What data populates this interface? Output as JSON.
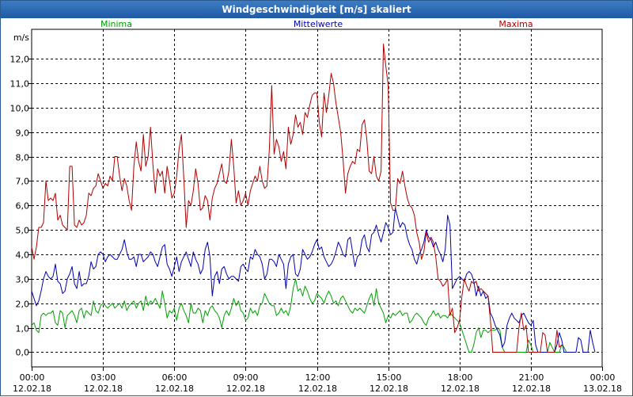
{
  "window": {
    "title": "Windgeschwindigkeit [m/s] skaliert"
  },
  "chart_data": {
    "type": "line",
    "title": "Windgeschwindigkeit [m/s] skaliert",
    "ylabel": "m/s",
    "ylim": [
      -0.6,
      13.2
    ],
    "xlim_hours": [
      0,
      24
    ],
    "grid": true,
    "yticks": [
      "0,0",
      "1,0",
      "2,0",
      "3,0",
      "4,0",
      "5,0",
      "6,0",
      "7,0",
      "8,0",
      "9,0",
      "10,0",
      "11,0",
      "12,0"
    ],
    "xticks": [
      {
        "time": "00:00",
        "date": "12.02.18"
      },
      {
        "time": "03:00",
        "date": "12.02.18"
      },
      {
        "time": "06:00",
        "date": "12.02.18"
      },
      {
        "time": "09:00",
        "date": "12.02.18"
      },
      {
        "time": "12:00",
        "date": "12.02.18"
      },
      {
        "time": "15:00",
        "date": "12.02.18"
      },
      {
        "time": "18:00",
        "date": "12.02.18"
      },
      {
        "time": "21:00",
        "date": "12.02.18"
      },
      {
        "time": "00:00",
        "date": "13.02.18"
      }
    ],
    "sample_interval_hours": 0.1,
    "series": [
      {
        "name": "Minima",
        "color": "#00a000",
        "values": [
          1.1,
          1.2,
          0.9,
          0.8,
          1.5,
          1.6,
          1.5,
          1.6,
          1.6,
          1.7,
          1.2,
          1.1,
          1.7,
          1.6,
          1.0,
          1.5,
          1.6,
          1.7,
          1.5,
          1.2,
          1.7,
          1.8,
          1.4,
          1.7,
          1.6,
          1.5,
          2.1,
          1.7,
          1.6,
          1.9,
          2.0,
          1.9,
          1.8,
          1.9,
          2.0,
          1.8,
          1.9,
          2.0,
          1.8,
          2.1,
          1.7,
          1.9,
          2.0,
          2.1,
          1.8,
          2.0,
          2.1,
          1.7,
          2.3,
          1.9,
          2.1,
          2.0,
          2.2,
          2.0,
          1.8,
          2.5,
          2.0,
          1.4,
          1.7,
          1.6,
          1.8,
          1.3,
          1.8,
          2.0,
          1.7,
          1.5,
          1.2,
          2.0,
          1.6,
          1.6,
          1.8,
          1.7,
          1.2,
          1.7,
          1.5,
          1.8,
          1.9,
          1.7,
          1.6,
          1.4,
          1.0,
          1.5,
          1.7,
          1.5,
          1.8,
          2.2,
          1.9,
          2.1,
          1.7,
          1.6,
          1.3,
          1.4,
          1.8,
          1.6,
          1.7,
          1.5,
          1.9,
          2.0,
          2.4,
          2.2,
          2.0,
          1.9,
          1.9,
          1.5,
          1.6,
          1.8,
          1.6,
          1.7,
          1.5,
          1.9,
          2.6,
          3.0,
          2.5,
          2.6,
          2.3,
          2.7,
          2.5,
          2.2,
          2.0,
          2.1,
          2.4,
          2.3,
          2.2,
          2.0,
          2.3,
          2.5,
          2.3,
          2.0,
          2.1,
          1.9,
          2.2,
          2.3,
          2.1,
          1.9,
          1.7,
          1.6,
          1.8,
          1.7,
          1.8,
          1.7,
          1.6,
          1.9,
          2.2,
          2.4,
          1.9,
          2.6,
          2.0,
          1.8,
          1.6,
          1.2,
          1.5,
          1.4,
          1.6,
          1.5,
          1.6,
          1.7,
          1.5,
          1.6,
          1.6,
          1.2,
          1.3,
          1.5,
          1.6,
          1.5,
          1.4,
          1.2,
          1.1,
          1.4,
          1.5,
          1.7,
          1.5,
          1.6,
          1.4,
          1.5,
          1.5,
          1.4,
          1.6,
          1.5,
          1.4,
          1.3,
          1.2,
          0.9,
          0.6,
          0.3,
          0.0,
          0.0,
          0.3,
          0.8,
          1.0,
          0.6,
          0.9,
          0.9,
          0.8,
          0.9,
          0.9,
          0.9,
          1.0,
          0.9,
          0.2,
          0.0,
          0.0,
          0.0,
          0.0,
          0.0,
          0.0,
          0.0,
          0.0,
          0.0,
          0.0,
          0.5,
          0.3,
          0.0,
          0.0,
          0.0,
          0.0,
          0.0,
          0.0,
          0.0,
          0.4,
          0.2,
          0.0,
          0.0,
          0.0,
          0.3,
          0.2,
          0.0,
          0.0
        ]
      },
      {
        "name": "Mittelwerte",
        "color": "#0000b0",
        "values": [
          2.5,
          2.2,
          1.9,
          2.1,
          2.5,
          3.0,
          3.3,
          3.1,
          3.0,
          3.1,
          3.6,
          2.9,
          2.8,
          2.4,
          2.5,
          3.0,
          3.2,
          3.5,
          2.8,
          2.6,
          3.3,
          2.7,
          2.8,
          2.8,
          3.1,
          3.7,
          3.4,
          3.5,
          4.0,
          4.1,
          4.0,
          3.7,
          3.9,
          4.0,
          3.9,
          3.8,
          3.8,
          4.0,
          4.2,
          4.6,
          4.1,
          3.8,
          3.8,
          3.9,
          3.5,
          4.0,
          4.0,
          3.7,
          3.8,
          3.9,
          4.1,
          4.0,
          3.7,
          3.5,
          3.9,
          4.3,
          4.4,
          3.6,
          3.4,
          3.1,
          3.5,
          3.9,
          3.3,
          3.7,
          3.9,
          4.1,
          3.8,
          3.5,
          4.1,
          3.8,
          3.6,
          3.2,
          3.4,
          4.2,
          4.5,
          3.9,
          2.3,
          3.1,
          3.3,
          2.8,
          3.4,
          3.5,
          3.2,
          3.0,
          3.1,
          3.1,
          3.0,
          2.9,
          3.5,
          3.6,
          3.4,
          3.3,
          3.9,
          3.8,
          4.2,
          4.0,
          3.9,
          3.6,
          3.0,
          3.2,
          3.8,
          3.8,
          3.7,
          3.5,
          4.0,
          3.8,
          3.6,
          2.6,
          3.6,
          3.9,
          4.0,
          3.2,
          3.1,
          3.4,
          4.2,
          4.0,
          3.8,
          3.9,
          4.1,
          4.4,
          4.6,
          4.2,
          4.3,
          3.9,
          3.7,
          3.5,
          3.6,
          3.8,
          4.1,
          4.5,
          4.3,
          4.0,
          3.9,
          4.6,
          4.7,
          4.1,
          3.5,
          3.9,
          4.0,
          4.6,
          4.8,
          4.3,
          4.1,
          4.8,
          4.9,
          5.2,
          4.8,
          4.5,
          4.9,
          5.3,
          5.1,
          4.8,
          4.9,
          5.9,
          5.5,
          5.1,
          5.3,
          5.2,
          4.7,
          4.4,
          4.2,
          3.8,
          3.6,
          4.0,
          4.2,
          4.5,
          5.0,
          4.7,
          4.6,
          4.3,
          4.5,
          4.2,
          4.0,
          3.7,
          4.2,
          5.6,
          5.2,
          2.6,
          2.8,
          3.0,
          3.1,
          3.0,
          2.9,
          3.2,
          3.3,
          3.2,
          2.9,
          2.3,
          2.7,
          2.3,
          2.5,
          2.2,
          2.3,
          1.6,
          1.4,
          1.1,
          0.9,
          0.7,
          0.2,
          0.4,
          1.1,
          1.4,
          1.6,
          1.4,
          1.3,
          1.2,
          1.5,
          1.6,
          1.4,
          1.2,
          1.1,
          1.3,
          0.3,
          0.0,
          0.0,
          0.0,
          0.0,
          0.0,
          0.0,
          0.0,
          0.0,
          0.3,
          0.8,
          0.5,
          0.0,
          0.0,
          0.0,
          0.0,
          0.0,
          0.0,
          0.6,
          0.5,
          0.0,
          0.0,
          0.0,
          0.9,
          0.4,
          0.0
        ]
      },
      {
        "name": "Maxima",
        "color": "#b00000",
        "values": [
          4.3,
          3.8,
          4.3,
          5.1,
          5.1,
          5.3,
          7.0,
          6.2,
          6.3,
          6.2,
          6.5,
          5.4,
          5.6,
          5.2,
          5.1,
          5.0,
          7.6,
          7.6,
          5.2,
          5.1,
          5.4,
          5.2,
          5.3,
          5.6,
          6.5,
          6.4,
          6.7,
          6.8,
          7.3,
          7.0,
          6.7,
          6.9,
          6.8,
          7.2,
          7.0,
          8.0,
          8.0,
          7.2,
          6.6,
          7.1,
          6.8,
          6.2,
          5.8,
          7.6,
          8.6,
          7.8,
          7.4,
          8.9,
          7.6,
          8.0,
          9.2,
          7.7,
          6.5,
          7.5,
          7.2,
          7.4,
          6.5,
          7.6,
          7.0,
          6.3,
          6.5,
          7.2,
          8.3,
          8.9,
          7.1,
          5.1,
          6.2,
          6.0,
          6.6,
          7.5,
          6.9,
          5.8,
          5.9,
          6.4,
          6.2,
          5.4,
          6.3,
          6.7,
          6.9,
          7.3,
          7.7,
          7.0,
          6.9,
          7.4,
          8.7,
          7.6,
          6.1,
          6.6,
          6.0,
          6.2,
          6.5,
          6.0,
          6.6,
          6.9,
          7.2,
          7.0,
          7.6,
          7.0,
          6.7,
          6.8,
          8.3,
          10.9,
          8.1,
          8.7,
          8.4,
          7.8,
          8.2,
          7.5,
          9.2,
          8.5,
          8.9,
          9.7,
          9.2,
          9.4,
          8.9,
          9.8,
          9.6,
          10.1,
          10.5,
          10.6,
          10.6,
          9.4,
          8.8,
          10.6,
          9.8,
          10.5,
          11.4,
          11.0,
          10.2,
          9.6,
          9.0,
          7.9,
          6.5,
          7.3,
          7.6,
          7.8,
          7.7,
          8.3,
          8.2,
          9.3,
          9.5,
          8.7,
          7.4,
          7.3,
          8.0,
          7.2,
          7.0,
          7.4,
          12.6,
          11.7,
          10.9,
          6.1,
          5.8,
          5.8,
          7.1,
          6.9,
          7.4,
          6.8,
          6.3,
          6.0,
          5.9,
          5.6,
          4.9,
          4.5,
          3.8,
          4.1,
          4.9,
          4.5,
          4.7,
          4.5,
          3.9,
          3.0,
          2.9,
          2.7,
          2.8,
          3.0,
          1.5,
          1.8,
          0.8,
          1.0,
          1.3,
          2.3,
          3.0,
          2.7,
          2.5,
          2.9,
          2.8,
          2.9,
          2.5,
          2.6,
          2.5,
          2.4,
          2.3,
          1.3,
          0.0,
          0.0,
          0.0,
          0.0,
          0.0,
          0.0,
          0.0,
          0.0,
          0.0,
          0.0,
          0.0,
          1.0,
          1.6,
          0.9,
          1.1,
          0.0,
          0.0,
          0.0,
          0.0,
          0.0,
          0.0,
          0.8,
          0.7,
          0.0,
          0.0,
          0.0,
          0.0,
          0.9,
          0.2,
          0.3
        ]
      }
    ]
  }
}
